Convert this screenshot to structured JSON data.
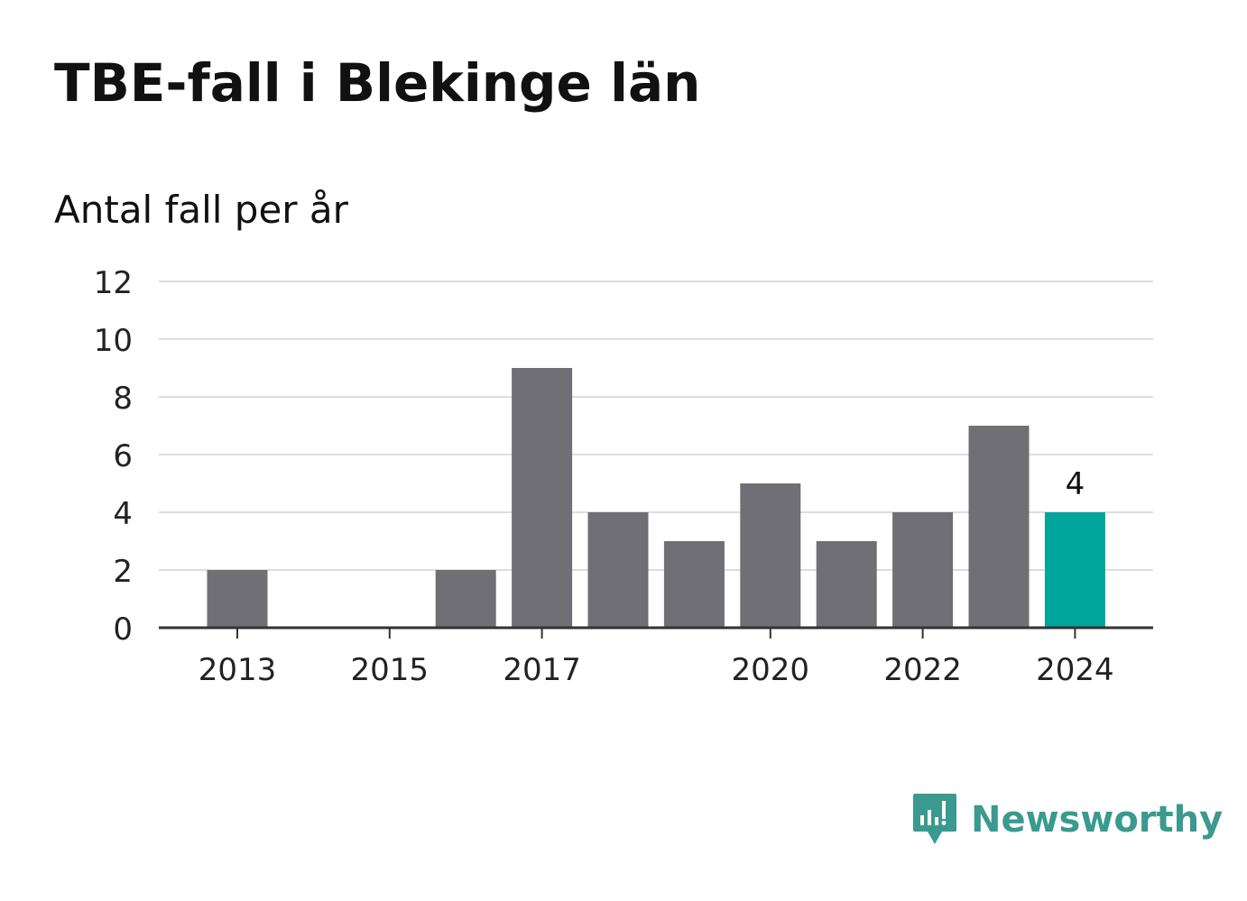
{
  "title": "TBE-fall i Blekinge län",
  "subtitle": "Antal fall per år",
  "brand": {
    "name": "Newsworthy",
    "icon": "newsworthy-logo-icon"
  },
  "colors": {
    "bar": "#706f75",
    "highlight": "#00a59b",
    "grid": "#dddddd",
    "axis": "#333333",
    "text": "#222222",
    "brand": "#3a9a8f"
  },
  "chart_data": {
    "type": "bar",
    "categories": [
      "2013",
      "2014",
      "2015",
      "2016",
      "2017",
      "2018",
      "2019",
      "2020",
      "2021",
      "2022",
      "2023",
      "2024"
    ],
    "values": [
      2,
      0,
      0,
      2,
      9,
      4,
      3,
      5,
      3,
      4,
      7,
      4
    ],
    "x_tick_labels": [
      "2013",
      "2015",
      "2017",
      "2020",
      "2022",
      "2024"
    ],
    "y_ticks": [
      0,
      2,
      4,
      6,
      8,
      10,
      12
    ],
    "ylim": [
      0,
      12
    ],
    "highlight_category": "2024",
    "data_labels": [
      {
        "category": "2024",
        "label": "4"
      }
    ],
    "grid": true,
    "legend": false,
    "xlabel": "",
    "ylabel": ""
  }
}
